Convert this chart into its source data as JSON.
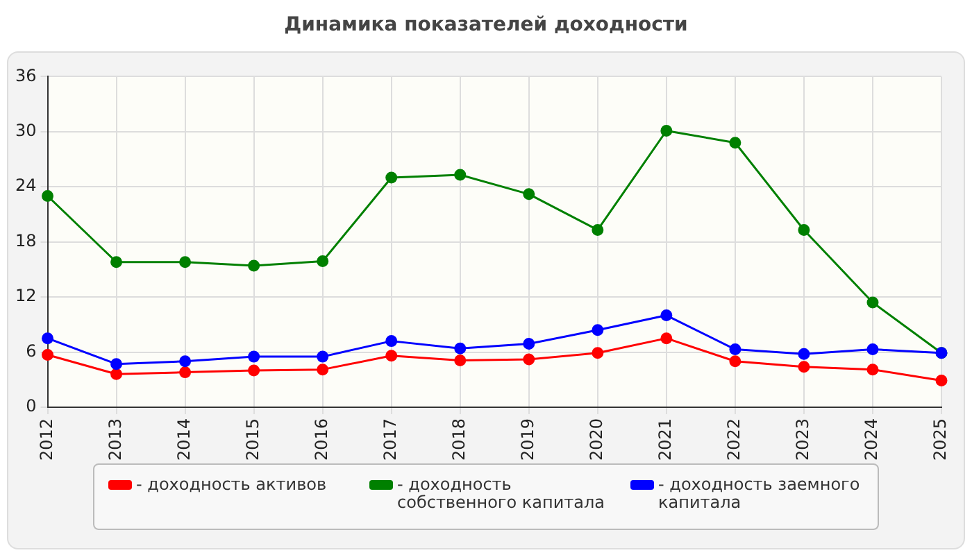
{
  "chart_data": {
    "type": "line",
    "title": "Динамика показателей доходности",
    "categories": [
      "2012",
      "2013",
      "2014",
      "2015",
      "2016",
      "2017",
      "2018",
      "2019",
      "2020",
      "2021",
      "2022",
      "2023",
      "2024",
      "2025"
    ],
    "series": [
      {
        "name": "- доходность активов",
        "color": "#ff0000",
        "values": [
          5.7,
          3.6,
          3.8,
          4.0,
          4.1,
          5.6,
          5.1,
          5.2,
          5.9,
          7.5,
          5.0,
          4.4,
          4.1,
          2.9
        ]
      },
      {
        "name": "- доходность собственного капитала",
        "color": "#008000",
        "values": [
          23.0,
          15.8,
          15.8,
          15.4,
          15.9,
          25.0,
          25.3,
          23.2,
          19.3,
          30.1,
          28.8,
          19.3,
          11.4,
          5.9
        ]
      },
      {
        "name": "- доходность заемного капитала",
        "color": "#0000ff",
        "values": [
          7.5,
          4.7,
          5.0,
          5.5,
          5.5,
          7.2,
          6.4,
          6.9,
          8.4,
          10.0,
          6.3,
          5.8,
          6.3,
          5.9
        ]
      }
    ],
    "ylim": [
      0,
      36
    ],
    "yticks": [
      0,
      6,
      12,
      18,
      24,
      30,
      36
    ],
    "grid": true,
    "legend": "bottom",
    "marker": "circle",
    "line_style": "solid"
  }
}
